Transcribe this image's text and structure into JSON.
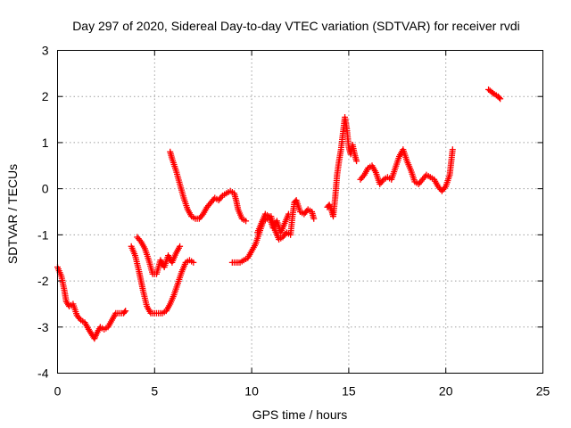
{
  "chart_data": {
    "type": "scatter",
    "title": "Day 297 of 2020, Sidereal Day-to-day VTEC variation (SDTVAR) for receiver rvdi",
    "xlabel": "GPS time / hours",
    "ylabel": "SDTVAR / TECUs",
    "xlim": [
      0,
      25
    ],
    "ylim": [
      -4,
      3
    ],
    "x_ticks": [
      "0",
      "5",
      "10",
      "15",
      "20",
      "25"
    ],
    "y_ticks": [
      "-4",
      "-3",
      "-2",
      "-1",
      "0",
      "1",
      "2",
      "3"
    ],
    "grid": true,
    "marker": "plus",
    "series": [
      {
        "name": "rvdi",
        "color": "#ff0000",
        "segments": [
          [
            [
              0.0,
              -1.7
            ],
            [
              0.2,
              -1.9
            ],
            [
              0.35,
              -2.2
            ],
            [
              0.45,
              -2.45
            ],
            [
              0.6,
              -2.55
            ],
            [
              0.8,
              -2.5
            ],
            [
              1.0,
              -2.75
            ],
            [
              1.2,
              -2.85
            ],
            [
              1.4,
              -2.9
            ],
            [
              1.6,
              -3.05
            ],
            [
              1.75,
              -3.15
            ],
            [
              1.9,
              -3.25
            ],
            [
              2.0,
              -3.15
            ],
            [
              2.2,
              -3.0
            ],
            [
              2.4,
              -3.05
            ],
            [
              2.6,
              -3.0
            ],
            [
              2.8,
              -2.85
            ],
            [
              3.0,
              -2.7
            ],
            [
              3.2,
              -2.7
            ],
            [
              3.4,
              -2.7
            ],
            [
              3.5,
              -2.65
            ]
          ],
          [
            [
              3.8,
              -1.25
            ],
            [
              4.0,
              -1.45
            ],
            [
              4.2,
              -1.8
            ],
            [
              4.4,
              -2.2
            ],
            [
              4.6,
              -2.55
            ],
            [
              4.8,
              -2.7
            ],
            [
              5.0,
              -2.7
            ],
            [
              5.2,
              -2.7
            ],
            [
              5.4,
              -2.7
            ],
            [
              5.6,
              -2.65
            ],
            [
              5.8,
              -2.5
            ],
            [
              6.0,
              -2.3
            ],
            [
              6.2,
              -2.05
            ],
            [
              6.4,
              -1.8
            ],
            [
              6.6,
              -1.6
            ],
            [
              6.8,
              -1.55
            ],
            [
              7.0,
              -1.6
            ]
          ],
          [
            [
              4.1,
              -1.05
            ],
            [
              4.3,
              -1.15
            ],
            [
              4.5,
              -1.3
            ],
            [
              4.7,
              -1.55
            ],
            [
              4.9,
              -1.85
            ],
            [
              5.1,
              -1.85
            ],
            [
              5.3,
              -1.55
            ],
            [
              5.5,
              -1.7
            ],
            [
              5.7,
              -1.45
            ],
            [
              5.9,
              -1.6
            ],
            [
              6.1,
              -1.4
            ],
            [
              6.3,
              -1.25
            ]
          ],
          [
            [
              5.8,
              0.8
            ],
            [
              5.9,
              0.65
            ],
            [
              6.1,
              0.4
            ],
            [
              6.3,
              0.1
            ],
            [
              6.5,
              -0.2
            ],
            [
              6.7,
              -0.45
            ],
            [
              6.9,
              -0.6
            ],
            [
              7.1,
              -0.65
            ],
            [
              7.3,
              -0.65
            ],
            [
              7.5,
              -0.55
            ],
            [
              7.7,
              -0.4
            ],
            [
              7.9,
              -0.3
            ],
            [
              8.1,
              -0.2
            ],
            [
              8.3,
              -0.25
            ],
            [
              8.5,
              -0.15
            ],
            [
              8.7,
              -0.1
            ],
            [
              8.9,
              -0.05
            ],
            [
              9.1,
              -0.1
            ],
            [
              9.2,
              -0.25
            ],
            [
              9.3,
              -0.45
            ],
            [
              9.5,
              -0.65
            ],
            [
              9.7,
              -0.7
            ]
          ],
          [
            [
              9.0,
              -1.6
            ],
            [
              9.2,
              -1.6
            ],
            [
              9.4,
              -1.6
            ],
            [
              9.6,
              -1.55
            ],
            [
              9.8,
              -1.5
            ],
            [
              10.0,
              -1.35
            ],
            [
              10.2,
              -1.2
            ],
            [
              10.4,
              -0.95
            ],
            [
              10.6,
              -0.7
            ],
            [
              10.8,
              -0.65
            ],
            [
              11.0,
              -0.6
            ],
            [
              11.2,
              -0.9
            ],
            [
              11.4,
              -1.1
            ],
            [
              11.6,
              -1.05
            ],
            [
              11.8,
              -0.95
            ],
            [
              12.0,
              -1.0
            ],
            [
              12.1,
              -0.6
            ],
            [
              12.2,
              -0.3
            ],
            [
              12.3,
              -0.25
            ],
            [
              12.5,
              -0.5
            ],
            [
              12.7,
              -0.55
            ],
            [
              12.9,
              -0.45
            ],
            [
              13.1,
              -0.5
            ],
            [
              13.2,
              -0.65
            ]
          ],
          [
            [
              10.3,
              -0.95
            ],
            [
              10.5,
              -0.75
            ],
            [
              10.7,
              -0.55
            ],
            [
              10.9,
              -0.6
            ],
            [
              11.1,
              -0.85
            ],
            [
              11.3,
              -0.7
            ],
            [
              11.5,
              -0.95
            ],
            [
              11.7,
              -0.75
            ],
            [
              11.9,
              -0.55
            ]
          ],
          [
            [
              13.9,
              -0.4
            ],
            [
              14.0,
              -0.35
            ],
            [
              14.1,
              -0.45
            ],
            [
              14.2,
              -0.6
            ],
            [
              14.3,
              -0.2
            ],
            [
              14.4,
              0.3
            ],
            [
              14.5,
              0.6
            ],
            [
              14.6,
              0.85
            ],
            [
              14.7,
              1.2
            ],
            [
              14.8,
              1.55
            ],
            [
              14.9,
              1.3
            ],
            [
              15.0,
              0.9
            ],
            [
              15.1,
              0.75
            ],
            [
              15.2,
              0.95
            ],
            [
              15.3,
              0.75
            ],
            [
              15.4,
              0.6
            ]
          ],
          [
            [
              15.6,
              0.2
            ],
            [
              15.8,
              0.3
            ],
            [
              16.0,
              0.45
            ],
            [
              16.2,
              0.5
            ],
            [
              16.4,
              0.35
            ],
            [
              16.6,
              0.1
            ],
            [
              16.8,
              0.2
            ],
            [
              17.0,
              0.25
            ],
            [
              17.2,
              0.2
            ],
            [
              17.4,
              0.45
            ],
            [
              17.6,
              0.7
            ],
            [
              17.8,
              0.85
            ],
            [
              18.0,
              0.6
            ],
            [
              18.2,
              0.4
            ],
            [
              18.4,
              0.15
            ],
            [
              18.6,
              0.1
            ],
            [
              18.8,
              0.2
            ],
            [
              19.0,
              0.3
            ],
            [
              19.2,
              0.25
            ],
            [
              19.4,
              0.2
            ],
            [
              19.6,
              0.05
            ],
            [
              19.8,
              -0.05
            ],
            [
              20.0,
              0.05
            ],
            [
              20.2,
              0.3
            ],
            [
              20.35,
              0.85
            ]
          ],
          [
            [
              22.2,
              2.15
            ],
            [
              22.35,
              2.1
            ],
            [
              22.5,
              2.05
            ],
            [
              22.7,
              2.0
            ],
            [
              22.8,
              1.95
            ]
          ]
        ]
      }
    ]
  }
}
